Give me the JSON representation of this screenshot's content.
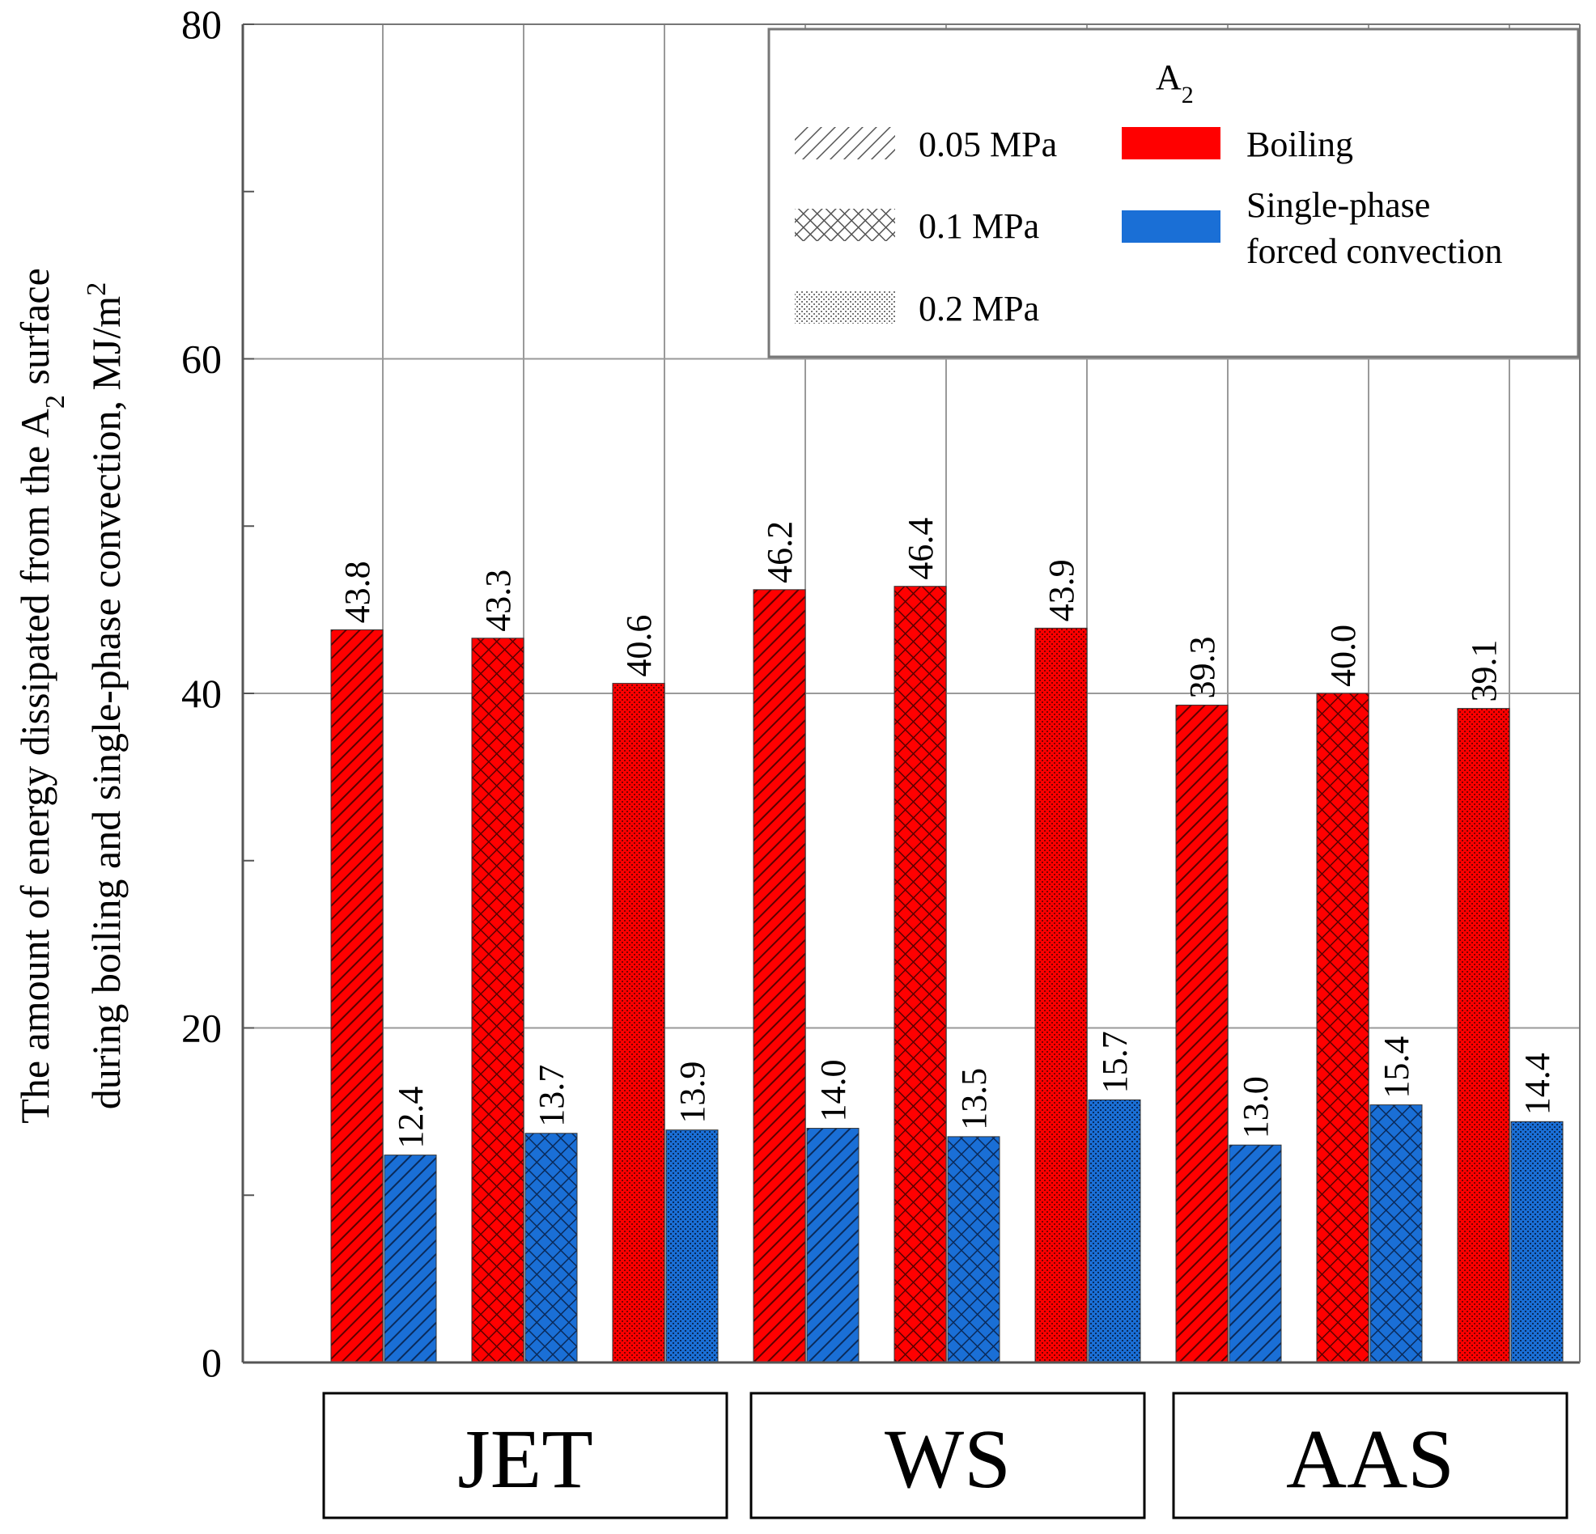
{
  "chart_data": {
    "type": "bar",
    "title": "",
    "ylabel_line1": "The amount of energy dissipated from the A",
    "ylabel_sub": "2",
    "ylabel_line1_tail": " surface",
    "ylabel_line2": "during boiling and single-phase convection, MJ/m",
    "ylabel_sup": "2",
    "ylim": [
      0,
      80
    ],
    "yticks": [
      "0",
      "20",
      "40",
      "60",
      "80"
    ],
    "groups": [
      "JET",
      "WS",
      "AAS"
    ],
    "pressures": [
      "0.05 MPa",
      "0.1 MPa",
      "0.2 MPa"
    ],
    "series": [
      {
        "name": "Boiling",
        "color": "#ff0000",
        "values": [
          43.8,
          43.3,
          40.6,
          46.2,
          46.4,
          43.9,
          39.3,
          40.0,
          39.1
        ],
        "labels": [
          "43.8",
          "43.3",
          "40.6",
          "46.2",
          "46.4",
          "43.9",
          "39.3",
          "40.0",
          "39.1"
        ]
      },
      {
        "name": "Single-phase forced convection",
        "color": "#1a6fd6",
        "values": [
          12.4,
          13.7,
          13.9,
          14.0,
          13.5,
          15.7,
          13.0,
          15.4,
          14.4
        ],
        "labels": [
          "12.4",
          "13.7",
          "13.9",
          "14.0",
          "13.5",
          "15.7",
          "13.0",
          "15.4",
          "14.4"
        ]
      }
    ],
    "legend": {
      "title": "A",
      "title_sub": "2",
      "pattern_labels": [
        "0.05 MPa",
        "0.1 MPa",
        "0.2 MPa"
      ],
      "boiling_label": "Boiling",
      "convection_label_line1": "Single-phase",
      "convection_label_line2": "forced convection"
    }
  }
}
